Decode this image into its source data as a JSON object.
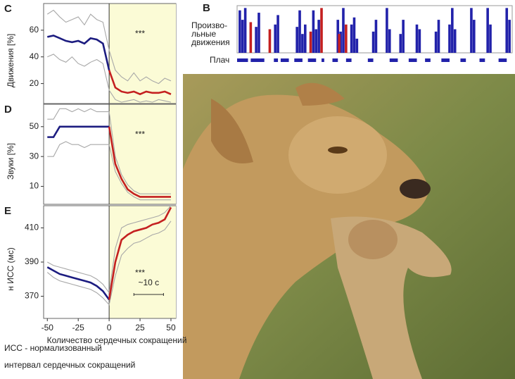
{
  "chart_data": [
    {
      "type": "line",
      "letter": "C",
      "ylabel": "Движения [%]",
      "annotation": "***",
      "x": [
        -50,
        -45,
        -40,
        -35,
        -30,
        -25,
        -20,
        -15,
        -10,
        -5,
        0,
        5,
        10,
        15,
        20,
        25,
        30,
        35,
        40,
        45,
        50
      ],
      "xlim": [
        -53,
        54
      ],
      "ylim": [
        5,
        80
      ],
      "yticks": [
        20,
        40,
        60
      ],
      "shade_xlim": [
        0,
        54
      ],
      "series": [
        {
          "color": "#a8a8a8",
          "values": [
            72,
            75,
            70,
            66,
            68,
            70,
            64,
            72,
            68,
            66,
            45,
            30,
            25,
            22,
            28,
            22,
            25,
            22,
            20,
            24,
            22
          ]
        },
        {
          "color": "#a8a8a8",
          "values": [
            40,
            42,
            38,
            36,
            40,
            35,
            33,
            36,
            38,
            35,
            15,
            8,
            6,
            7,
            8,
            6,
            7,
            6,
            8,
            7,
            6
          ]
        },
        {
          "color": "#1c1c80",
          "values": [
            55,
            56,
            54,
            52,
            51,
            52,
            50,
            54,
            53,
            50,
            30,
            null,
            null,
            null,
            null,
            null,
            null,
            null,
            null,
            null,
            null
          ]
        },
        {
          "color": "#c42020",
          "values": [
            null,
            null,
            null,
            null,
            null,
            null,
            null,
            null,
            null,
            null,
            30,
            17,
            14,
            13,
            14,
            12,
            14,
            13,
            13,
            14,
            12
          ]
        }
      ]
    },
    {
      "type": "line",
      "letter": "D",
      "ylabel": "Звуки [%]",
      "annotation": "***",
      "x": [
        -50,
        -45,
        -40,
        -35,
        -30,
        -25,
        -20,
        -15,
        -10,
        -5,
        0,
        5,
        10,
        15,
        20,
        25,
        30,
        35,
        40,
        45,
        50
      ],
      "xlim": [
        -53,
        54
      ],
      "ylim": [
        -2,
        65
      ],
      "yticks": [
        10,
        30,
        50
      ],
      "shade_xlim": [
        0,
        54
      ],
      "series": [
        {
          "color": "#a8a8a8",
          "values": [
            55,
            55,
            62,
            62,
            60,
            62,
            60,
            62,
            60,
            60,
            60,
            30,
            18,
            11,
            7,
            5,
            5,
            5,
            5,
            5,
            5
          ]
        },
        {
          "color": "#a8a8a8",
          "values": [
            30,
            30,
            38,
            40,
            38,
            38,
            36,
            38,
            38,
            38,
            38,
            20,
            12,
            6,
            3,
            1,
            1,
            1,
            1,
            1,
            1
          ]
        },
        {
          "color": "#1c1c80",
          "values": [
            43,
            43,
            50,
            50,
            50,
            50,
            50,
            50,
            50,
            50,
            50,
            null,
            null,
            null,
            null,
            null,
            null,
            null,
            null,
            null,
            null
          ]
        },
        {
          "color": "#c42020",
          "values": [
            null,
            null,
            null,
            null,
            null,
            null,
            null,
            null,
            null,
            null,
            50,
            25,
            15,
            8,
            5,
            3,
            3,
            3,
            3,
            3,
            3
          ]
        }
      ]
    },
    {
      "type": "line",
      "letter": "E",
      "ylabel": "н ИСС (мс)",
      "annotation": "***",
      "scale_label": "~10 с",
      "xlabel": "Количество сердечных сокращений",
      "x": [
        -50,
        -45,
        -40,
        -35,
        -30,
        -25,
        -20,
        -15,
        -10,
        -5,
        0,
        5,
        10,
        15,
        20,
        25,
        30,
        35,
        40,
        45,
        50
      ],
      "xlim": [
        -53,
        54
      ],
      "xticks": [
        -50,
        -25,
        0,
        25,
        50
      ],
      "ylim": [
        357,
        423
      ],
      "yticks": [
        370,
        390,
        410
      ],
      "shade_xlim": [
        0,
        54
      ],
      "caption": [
        "ИСС - нормализованный",
        "интервал сердечных сокращений"
      ],
      "series": [
        {
          "color": "#a8a8a8",
          "values": [
            390,
            388,
            387,
            386,
            385,
            384,
            383,
            382,
            380,
            377,
            372,
            398,
            410,
            412,
            413,
            414,
            415,
            416,
            417,
            419,
            423
          ]
        },
        {
          "color": "#a8a8a8",
          "values": [
            384,
            381,
            379,
            378,
            377,
            376,
            375,
            374,
            372,
            369,
            365,
            382,
            394,
            398,
            401,
            402,
            404,
            406,
            407,
            409,
            414
          ]
        },
        {
          "color": "#1c1c80",
          "values": [
            387,
            385,
            383,
            382,
            381,
            380,
            379,
            378,
            376,
            373,
            368,
            null,
            null,
            null,
            null,
            null,
            null,
            null,
            null,
            null,
            null
          ]
        },
        {
          "color": "#c42020",
          "values": [
            null,
            null,
            null,
            null,
            null,
            null,
            null,
            null,
            null,
            null,
            368,
            390,
            403,
            406,
            408,
            409,
            410,
            412,
            413,
            415,
            422
          ]
        }
      ]
    },
    {
      "type": "raster",
      "letter": "B",
      "row_labels": [
        "Произво-",
        "льные",
        "движения"
      ],
      "cry_label": "Плач",
      "xlim": [
        0,
        101
      ],
      "ylim": [
        0,
        100
      ],
      "series": [
        {
          "color": "#2222aa",
          "x": [
            1,
            2,
            3,
            7,
            8,
            14,
            15,
            22,
            23,
            24,
            25,
            28,
            29,
            30,
            37,
            38,
            39,
            42,
            43,
            44,
            50,
            51,
            55,
            56,
            60,
            61,
            66,
            67,
            73,
            74,
            78,
            79,
            80,
            86,
            87,
            92,
            93,
            99,
            100
          ],
          "values": [
            90,
            70,
            95,
            55,
            85,
            60,
            80,
            55,
            90,
            40,
            60,
            90,
            50,
            70,
            70,
            45,
            95,
            60,
            75,
            30,
            45,
            70,
            95,
            50,
            40,
            70,
            60,
            50,
            45,
            70,
            60,
            95,
            50,
            95,
            70,
            95,
            60,
            95,
            70
          ]
        },
        {
          "color": "#c42020",
          "x": [
            5,
            12,
            27,
            31,
            37.5,
            40
          ],
          "values": [
            65,
            50,
            45,
            95,
            40,
            60
          ]
        }
      ],
      "cry_color": "#2222aa",
      "cry": [
        [
          0,
          4
        ],
        [
          5,
          10
        ],
        [
          13.5,
          15
        ],
        [
          16,
          19
        ],
        [
          21,
          24
        ],
        [
          26,
          29
        ],
        [
          31,
          32
        ],
        [
          35,
          37
        ],
        [
          40,
          42
        ],
        [
          48,
          50
        ],
        [
          56,
          59
        ],
        [
          63,
          66
        ],
        [
          69,
          71
        ],
        [
          75,
          78
        ],
        [
          82,
          84
        ],
        [
          89,
          91
        ],
        [
          96,
          99
        ]
      ]
    }
  ]
}
